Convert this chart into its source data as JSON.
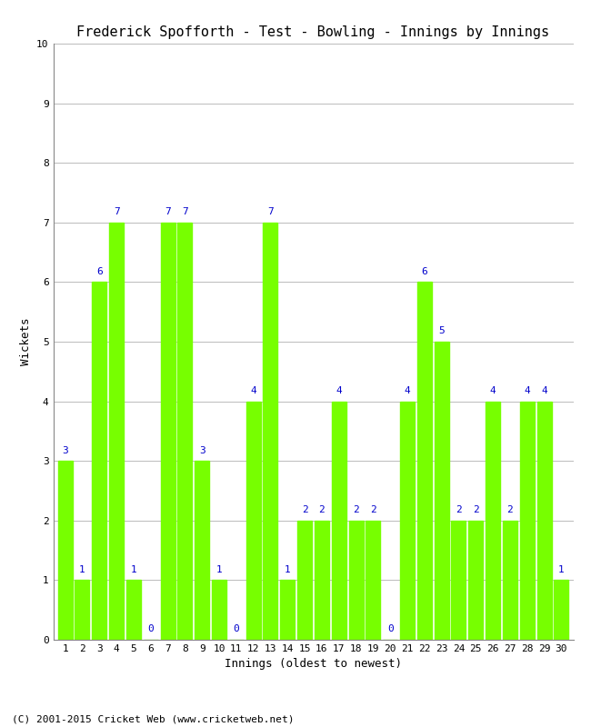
{
  "title": "Frederick Spofforth - Test - Bowling - Innings by Innings",
  "xlabel": "Innings (oldest to newest)",
  "ylabel": "Wickets",
  "ylim": [
    0,
    10
  ],
  "yticks": [
    0,
    1,
    2,
    3,
    4,
    5,
    6,
    7,
    8,
    9,
    10
  ],
  "innings": [
    1,
    2,
    3,
    4,
    5,
    6,
    7,
    8,
    9,
    10,
    11,
    12,
    13,
    14,
    15,
    16,
    17,
    18,
    19,
    20,
    21,
    22,
    23,
    24,
    25,
    26,
    27,
    28,
    29,
    30
  ],
  "wickets": [
    3,
    1,
    6,
    7,
    1,
    0,
    7,
    7,
    3,
    1,
    0,
    4,
    7,
    1,
    2,
    2,
    4,
    2,
    2,
    0,
    4,
    6,
    5,
    2,
    2,
    4,
    2,
    4,
    4,
    1
  ],
  "bar_color": "#77ff00",
  "label_color": "#0000cc",
  "background_color": "#ffffff",
  "grid_color": "#bbbbbb",
  "footer": "(C) 2001-2015 Cricket Web (www.cricketweb.net)",
  "title_fontsize": 11,
  "label_fontsize": 9,
  "tick_fontsize": 8,
  "footer_fontsize": 8,
  "bar_label_fontsize": 8,
  "bar_width": 0.85
}
